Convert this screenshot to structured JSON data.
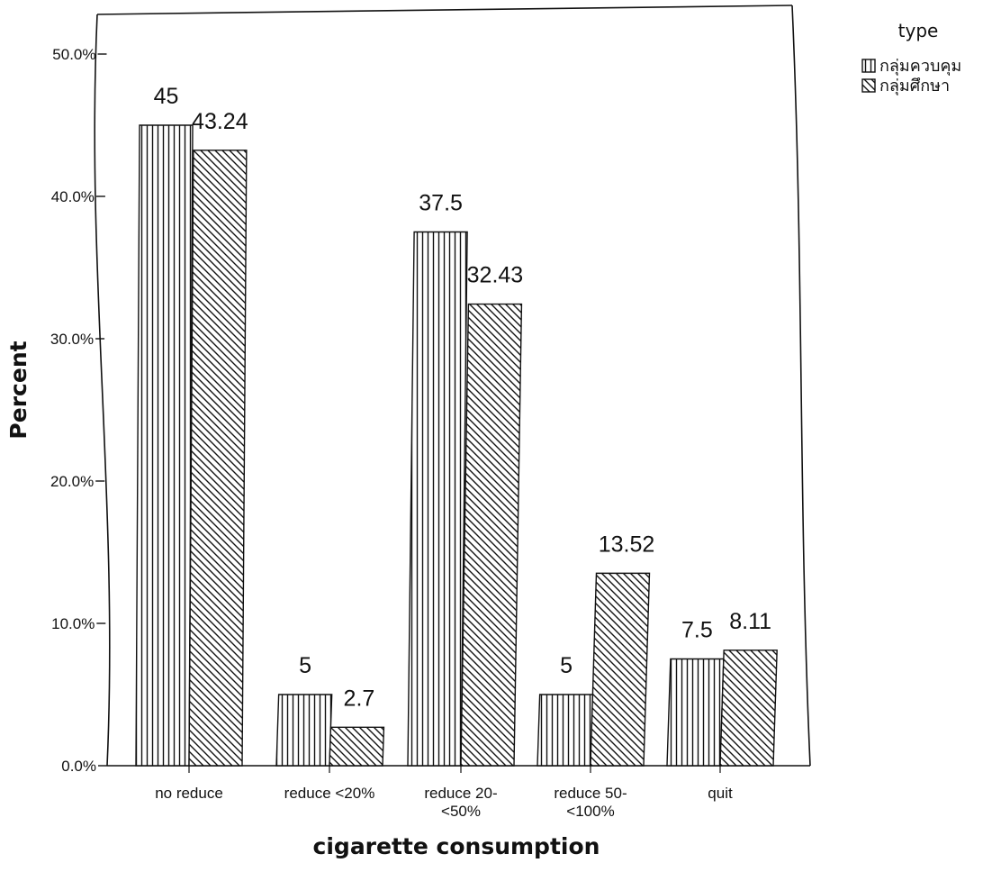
{
  "chart_data": {
    "type": "bar",
    "xlabel": "cigarette consumption",
    "ylabel": "Percent",
    "ylim": [
      0,
      50
    ],
    "yticks": [
      "0.0%",
      "10.0%",
      "20.0%",
      "30.0%",
      "40.0%",
      "50.0%"
    ],
    "categories": [
      [
        "no reduce"
      ],
      [
        "reduce <20%"
      ],
      [
        "reduce 20-",
        "<50%"
      ],
      [
        "reduce 50-",
        "<100%"
      ],
      [
        "quit"
      ]
    ],
    "legend": {
      "title": "type",
      "placement": "top-right, outside plot"
    },
    "series": [
      {
        "name": "กลุ่มควบคุม",
        "pattern": "vertical-stripes",
        "values": [
          45,
          5,
          37.5,
          5,
          7.5
        ],
        "labels": [
          "45",
          "5",
          "37.5",
          "5",
          "7.5"
        ]
      },
      {
        "name": "กลุ่มศึกษา",
        "pattern": "diagonal-stripes",
        "values": [
          43.24,
          2.7,
          32.43,
          13.52,
          8.11
        ],
        "labels": [
          "43.24",
          "2.7",
          "32.43",
          "13.52",
          "8.11"
        ]
      }
    ],
    "grid": false
  }
}
